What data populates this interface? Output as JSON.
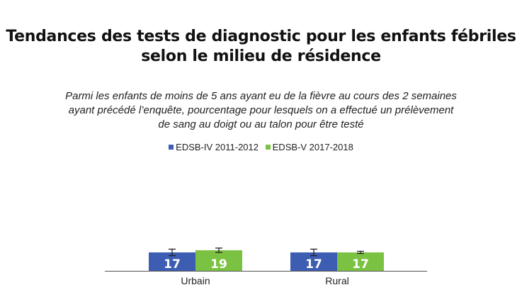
{
  "chart_data": {
    "type": "bar",
    "title_lines": [
      "Tendances des tests de diagnostic pour les enfants fébriles",
      "selon le milieu de résidence"
    ],
    "subtitle_lines": [
      "Parmi les enfants de moins de 5 ans ayant eu de la fièvre au cours des 2 semaines",
      "ayant précédé l’enquête, pourcentage pour lesquels on a effectué un prélèvement",
      "de sang au doigt ou au talon pour être testé"
    ],
    "categories": [
      "Urbain",
      "Rural"
    ],
    "series": [
      {
        "name": "EDSB-IV 2011-2012",
        "color": "#3d5db3",
        "values": [
          17,
          17
        ],
        "error": [
          [
            14,
            20
          ],
          [
            14,
            20
          ]
        ]
      },
      {
        "name": "EDSB-V 2017-2018",
        "color": "#7cc242",
        "values": [
          19,
          17
        ],
        "error": [
          [
            17,
            21
          ],
          [
            16,
            18
          ]
        ]
      }
    ],
    "ylim": [
      0,
      100
    ],
    "legend_position": "top",
    "grid": false,
    "xlabel": "",
    "ylabel": ""
  }
}
